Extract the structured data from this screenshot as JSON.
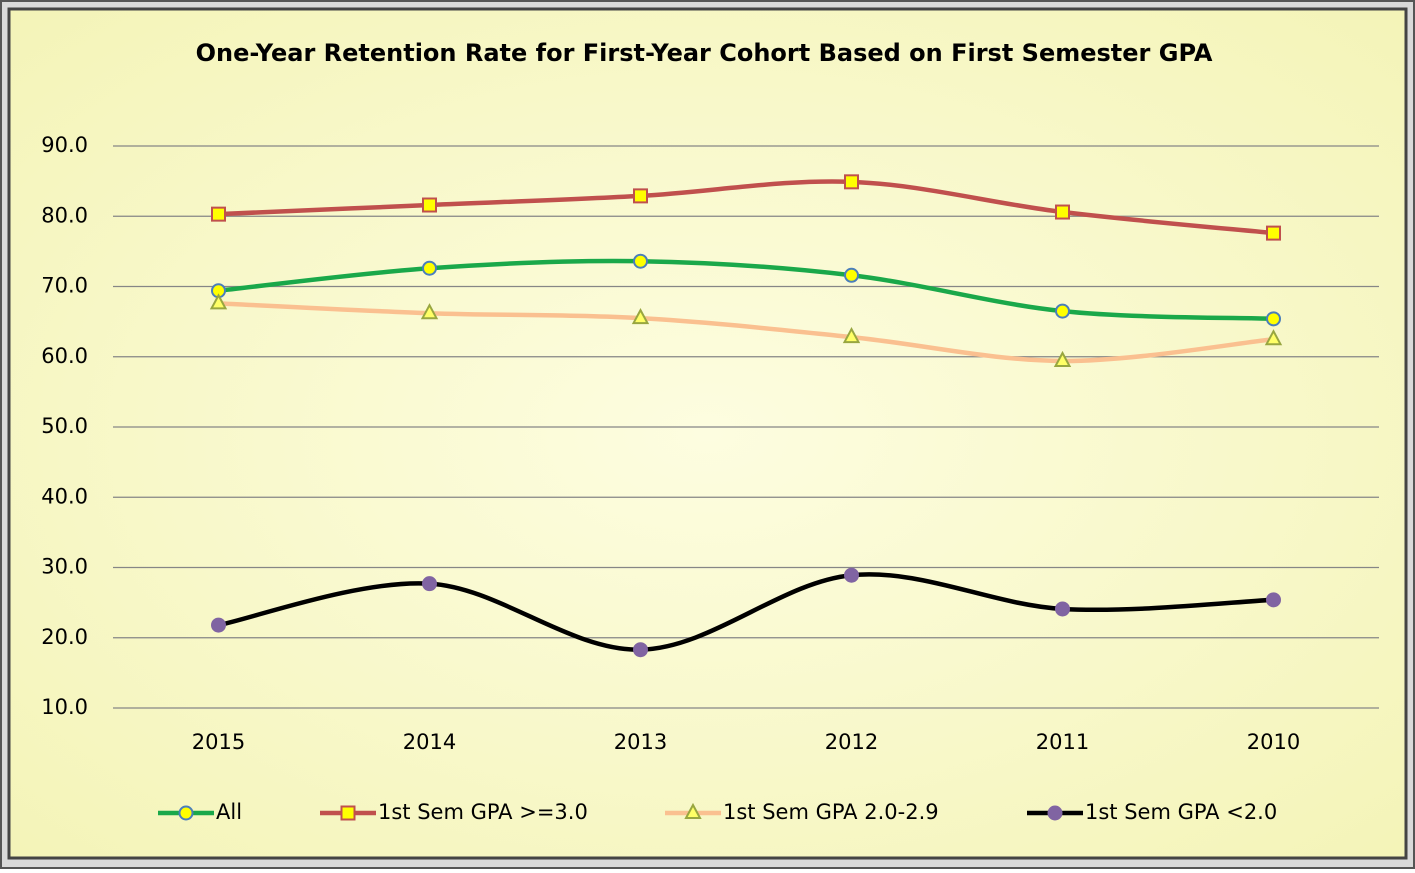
{
  "chart_data": {
    "type": "line",
    "title": "One-Year Retention Rate for First-Year Cohort Based on First Semester GPA",
    "categories": [
      "2015",
      "2014",
      "2013",
      "2012",
      "2011",
      "2010"
    ],
    "series": [
      {
        "name": "All",
        "color": "#1aa84a",
        "marker": "circle",
        "marker_fill": "#ffff00",
        "marker_stroke": "#4a7ebb",
        "values": [
          69.4,
          72.6,
          73.6,
          71.6,
          66.5,
          65.4
        ]
      },
      {
        "name": "1st Sem GPA >=3.0",
        "color": "#c0504d",
        "marker": "square",
        "marker_fill": "#ffff00",
        "marker_stroke": "#c0504d",
        "values": [
          80.3,
          81.6,
          82.9,
          84.9,
          80.6,
          77.6
        ]
      },
      {
        "name": "1st Sem GPA 2.0-2.9",
        "color": "#fac090",
        "marker": "triangle",
        "marker_fill": "#ffff66",
        "marker_stroke": "#98a640",
        "values": [
          67.6,
          66.2,
          65.5,
          62.8,
          59.4,
          62.5
        ]
      },
      {
        "name": "1st Sem GPA <2.0",
        "color": "#000000",
        "marker": "circle",
        "marker_fill": "#8064a2",
        "marker_stroke": "#8064a2",
        "values": [
          21.8,
          27.7,
          18.3,
          28.9,
          24.1,
          25.4
        ]
      }
    ],
    "ylim": [
      10,
      90
    ],
    "yticks": [
      {
        "value": 10,
        "label": "10.0"
      },
      {
        "value": 20,
        "label": "20.0"
      },
      {
        "value": 30,
        "label": "30.0"
      },
      {
        "value": 40,
        "label": "40.0"
      },
      {
        "value": 50,
        "label": "50.0"
      },
      {
        "value": 60,
        "label": "60.0"
      },
      {
        "value": 70,
        "label": "70.0"
      },
      {
        "value": 80,
        "label": "80.0"
      },
      {
        "value": 90,
        "label": "90.0"
      }
    ],
    "grid": true,
    "smooth": true,
    "legend": "bottom"
  }
}
